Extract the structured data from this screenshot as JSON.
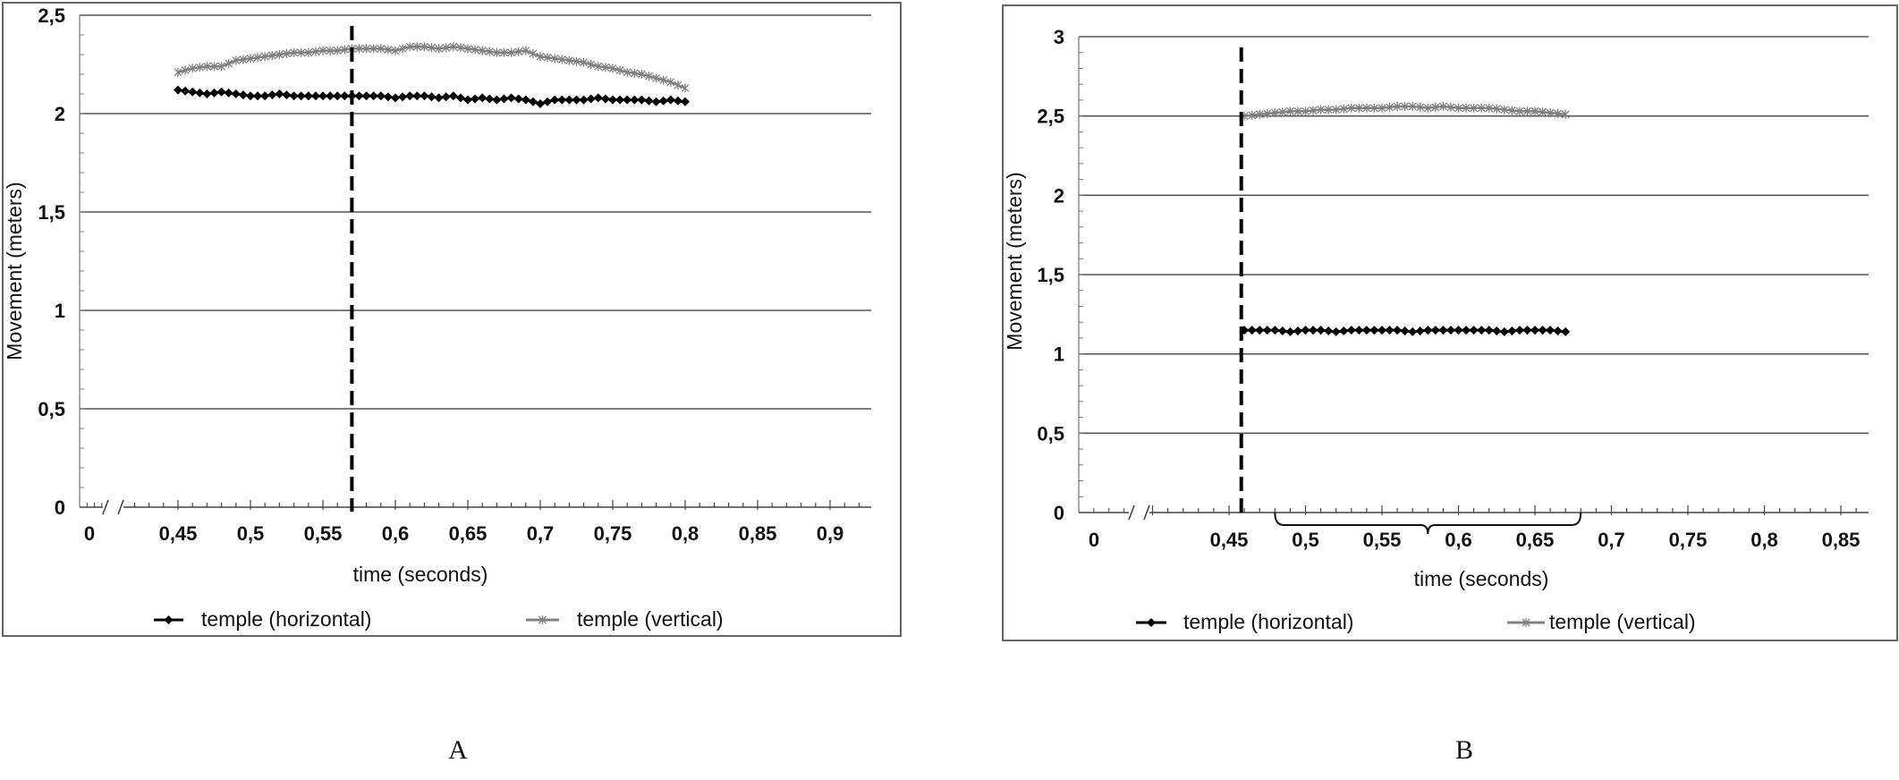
{
  "colors": {
    "horizontal": "#000000",
    "vertical": "#808080",
    "grid": "#555555",
    "frame": "#666666",
    "marker_line": "#000000"
  },
  "panel_labels": [
    "A",
    "B"
  ],
  "chart_data": [
    {
      "type": "line",
      "panel": "A",
      "xlabel": "time (seconds)",
      "ylabel": "Movement (meters)",
      "ylim": [
        0,
        2.5
      ],
      "xlim": [
        0.45,
        0.93
      ],
      "axis_break": true,
      "grid": true,
      "legend_placement": "bottom",
      "yticks": [
        "0",
        "0,5",
        "1",
        "1,5",
        "2",
        "2,5"
      ],
      "ytick_values": [
        0,
        0.5,
        1,
        1.5,
        2,
        2.5
      ],
      "xticks": [
        "0",
        "0,45",
        "0,5",
        "0,55",
        "0,6",
        "0,65",
        "0,7",
        "0,75",
        "0,8",
        "0,85",
        "0,9"
      ],
      "xtick_values": [
        0,
        0.45,
        0.5,
        0.55,
        0.6,
        0.65,
        0.7,
        0.75,
        0.8,
        0.85,
        0.9
      ],
      "marker_time": 0.57,
      "x": [
        0.45,
        0.46,
        0.47,
        0.48,
        0.49,
        0.5,
        0.51,
        0.52,
        0.53,
        0.54,
        0.55,
        0.56,
        0.57,
        0.58,
        0.59,
        0.6,
        0.61,
        0.62,
        0.63,
        0.64,
        0.65,
        0.66,
        0.67,
        0.68,
        0.69,
        0.7,
        0.71,
        0.72,
        0.73,
        0.74,
        0.75,
        0.76,
        0.77,
        0.78,
        0.79,
        0.8
      ],
      "series": [
        {
          "name": "temple (horizontal)",
          "style": "diamond",
          "values": [
            2.12,
            2.11,
            2.1,
            2.11,
            2.1,
            2.09,
            2.09,
            2.1,
            2.09,
            2.09,
            2.09,
            2.09,
            2.09,
            2.09,
            2.09,
            2.08,
            2.09,
            2.09,
            2.08,
            2.09,
            2.07,
            2.08,
            2.07,
            2.08,
            2.07,
            2.05,
            2.07,
            2.07,
            2.07,
            2.08,
            2.07,
            2.07,
            2.07,
            2.06,
            2.07,
            2.06
          ]
        },
        {
          "name": "temple (vertical)",
          "style": "asterisk",
          "values": [
            2.21,
            2.23,
            2.24,
            2.24,
            2.27,
            2.28,
            2.29,
            2.3,
            2.31,
            2.31,
            2.32,
            2.32,
            2.33,
            2.33,
            2.33,
            2.32,
            2.34,
            2.34,
            2.33,
            2.34,
            2.33,
            2.32,
            2.31,
            2.31,
            2.32,
            2.29,
            2.28,
            2.27,
            2.26,
            2.24,
            2.23,
            2.21,
            2.2,
            2.18,
            2.16,
            2.13
          ]
        }
      ]
    },
    {
      "type": "line",
      "panel": "B",
      "xlabel": "time (seconds)",
      "ylabel": "Movement (meters)",
      "ylim": [
        0,
        3
      ],
      "xlim": [
        0.45,
        0.87
      ],
      "axis_break": true,
      "grid": true,
      "legend_placement": "bottom",
      "yticks": [
        "0",
        "0,5",
        "1",
        "1,5",
        "2",
        "2,5",
        "3"
      ],
      "ytick_values": [
        0,
        0.5,
        1,
        1.5,
        2,
        2.5,
        3
      ],
      "xticks": [
        "0",
        "0,45",
        "0,5",
        "0,55",
        "0,6",
        "0,65",
        "0,7",
        "0,75",
        "0,8",
        "0,85"
      ],
      "xtick_values": [
        0,
        0.45,
        0.5,
        0.55,
        0.6,
        0.65,
        0.7,
        0.75,
        0.8,
        0.85
      ],
      "marker_time": 0.458,
      "brace_range": [
        0.48,
        0.68
      ],
      "x": [
        0.46,
        0.47,
        0.48,
        0.49,
        0.5,
        0.51,
        0.52,
        0.53,
        0.54,
        0.55,
        0.56,
        0.57,
        0.58,
        0.59,
        0.6,
        0.61,
        0.62,
        0.63,
        0.64,
        0.65,
        0.66,
        0.67
      ],
      "series": [
        {
          "name": "temple (horizontal)",
          "style": "diamond",
          "values": [
            1.15,
            1.15,
            1.15,
            1.14,
            1.15,
            1.15,
            1.14,
            1.15,
            1.15,
            1.15,
            1.15,
            1.14,
            1.15,
            1.15,
            1.15,
            1.15,
            1.15,
            1.14,
            1.15,
            1.15,
            1.15,
            1.14
          ]
        },
        {
          "name": "temple (vertical)",
          "style": "asterisk",
          "values": [
            2.5,
            2.51,
            2.52,
            2.53,
            2.53,
            2.54,
            2.54,
            2.55,
            2.55,
            2.55,
            2.56,
            2.56,
            2.55,
            2.56,
            2.55,
            2.55,
            2.55,
            2.54,
            2.53,
            2.53,
            2.52,
            2.51
          ]
        }
      ]
    }
  ]
}
